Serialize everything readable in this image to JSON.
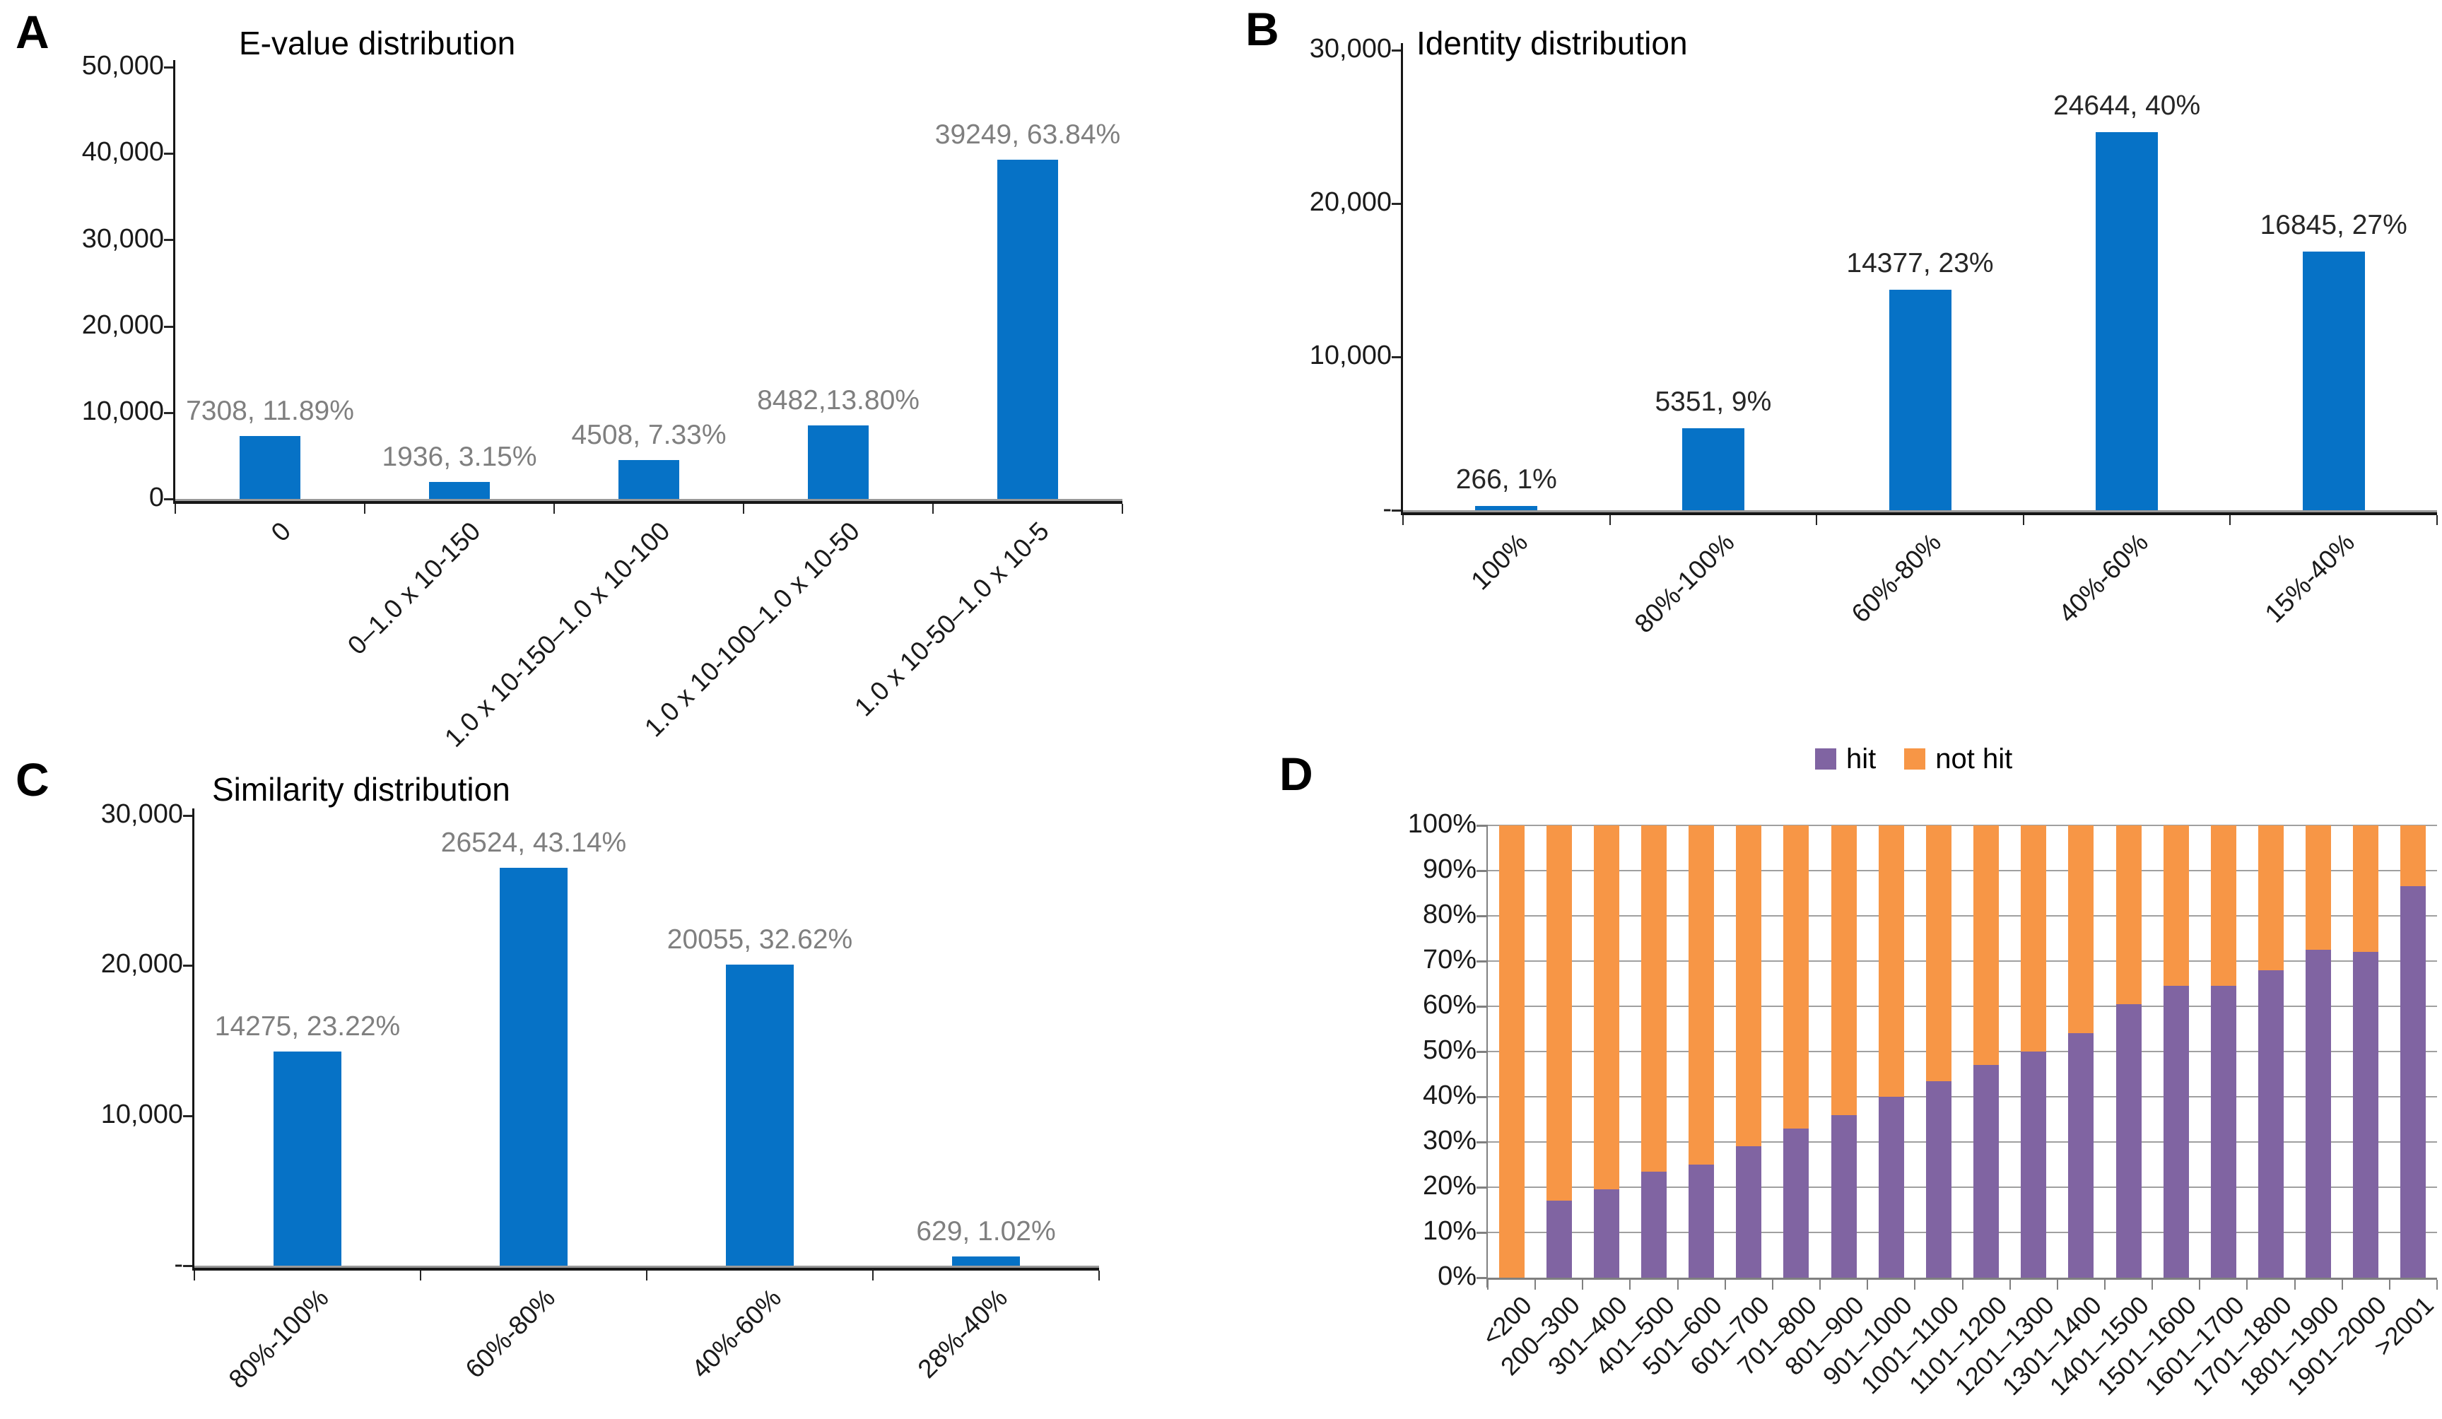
{
  "figure": {
    "background": "#ffffff",
    "accent_blue": "#0672C6",
    "accent_purple": "#8064A2",
    "accent_orange": "#F79646"
  },
  "chart_data": [
    {
      "panel": "A",
      "type": "bar",
      "title": "E-value distribution",
      "categories": [
        "0",
        "0–1.0 x 10-150",
        "1.0 x 10-150–1.0 x 10-100",
        "1.0 x 10-100–1.0 x 10-50",
        "1.0 x 10-50–1.0 x 10-5"
      ],
      "values": [
        7308,
        1936,
        4508,
        8482,
        39249
      ],
      "labels": [
        "7308, 11.89%",
        "1936, 3.15%",
        "4508, 7.33%",
        "8482,13.80%",
        "39249, 63.84%"
      ],
      "xlabel": "",
      "ylabel": "",
      "ylim": [
        0,
        50000
      ],
      "yticks": [
        "0",
        "10,000",
        "20,000",
        "30,000",
        "40,000",
        "50,000"
      ],
      "grid": false,
      "legend_position": "none",
      "bar_color": "#0672C6",
      "label_color": "#7F7F7F"
    },
    {
      "panel": "B",
      "type": "bar",
      "title": "Identity distribution",
      "categories": [
        "100%",
        "80%-100%",
        "60%-80%",
        "40%-60%",
        "15%-40%"
      ],
      "values": [
        266,
        5351,
        14377,
        24644,
        16845
      ],
      "labels": [
        "266, 1%",
        "5351, 9%",
        "14377, 23%",
        "24644, 40%",
        "16845, 27%"
      ],
      "xlabel": "",
      "ylabel": "",
      "ylim": [
        0,
        30000
      ],
      "yticks": [
        "-",
        "10,000",
        "20,000",
        "30,000"
      ],
      "grid": false,
      "legend_position": "none",
      "bar_color": "#0672C6",
      "label_color": "#262626"
    },
    {
      "panel": "C",
      "type": "bar",
      "title": "Similarity distribution",
      "categories": [
        "80%-100%",
        "60%-80%",
        "40%-60%",
        "28%-40%"
      ],
      "values": [
        14275,
        26524,
        20055,
        629
      ],
      "labels": [
        "14275, 23.22%",
        "26524, 43.14%",
        "20055, 32.62%",
        "629, 1.02%"
      ],
      "xlabel": "",
      "ylabel": "",
      "ylim": [
        0,
        30000
      ],
      "yticks": [
        "-",
        "10,000",
        "20,000",
        "30,000"
      ],
      "grid": false,
      "legend_position": "none",
      "bar_color": "#0672C6",
      "label_color": "#7F7F7F"
    },
    {
      "panel": "D",
      "type": "stacked100",
      "title": "",
      "categories": [
        "<200",
        "200–300",
        "301–400",
        "401–500",
        "501–600",
        "601–700",
        "701–800",
        "801–900",
        "901–1000",
        "1001–1100",
        "1101–1200",
        "1201–1300",
        "1301–1400",
        "1401–1500",
        "1501–1600",
        "1601–1700",
        "1701–1800",
        "1801–1900",
        "1901–2000",
        ">2001"
      ],
      "series": [
        {
          "name": "hit",
          "color": "#8064A2",
          "values": [
            0,
            17,
            19.5,
            23.5,
            25,
            29,
            33,
            36,
            40,
            43.5,
            47,
            50,
            54,
            60.5,
            64.5,
            64.5,
            68,
            72.5,
            72,
            86.5
          ]
        },
        {
          "name": "not hit",
          "color": "#F79646",
          "values": [
            100,
            83,
            80.5,
            76.5,
            75,
            71,
            67,
            64,
            60,
            56.5,
            53,
            50,
            46,
            39.5,
            35.5,
            35.5,
            32,
            27.5,
            28,
            13.5
          ]
        }
      ],
      "xlabel": "",
      "ylabel": "",
      "ylim": [
        0,
        100
      ],
      "yticks": [
        "0%",
        "10%",
        "20%",
        "30%",
        "40%",
        "50%",
        "60%",
        "70%",
        "80%",
        "90%",
        "100%"
      ],
      "grid": true,
      "legend_position": "top"
    }
  ]
}
